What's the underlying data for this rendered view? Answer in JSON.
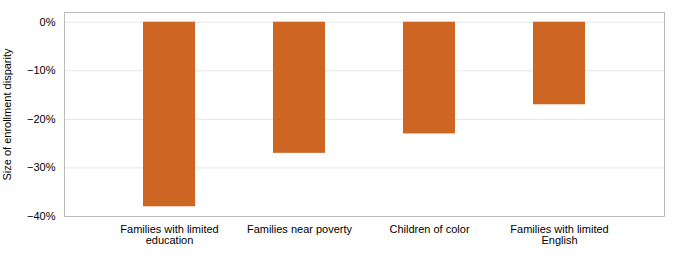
{
  "chart_data": {
    "type": "bar",
    "categories": [
      "Families with limited\neducation",
      "Families near poverty",
      "Children of color",
      "Families with limited\nEnglish"
    ],
    "values": [
      -38,
      -27,
      -23,
      -17
    ],
    "color": "#CC6622",
    "ylabel": "Size of enrollment disparity",
    "ylim": [
      -40,
      2
    ],
    "yticks": [
      {
        "value": 0,
        "label": "0%"
      },
      {
        "value": -10,
        "label": "−10%"
      },
      {
        "value": -20,
        "label": "−20%"
      },
      {
        "value": -30,
        "label": "−30%"
      },
      {
        "value": -40,
        "label": "−40%"
      }
    ],
    "grid": true
  }
}
